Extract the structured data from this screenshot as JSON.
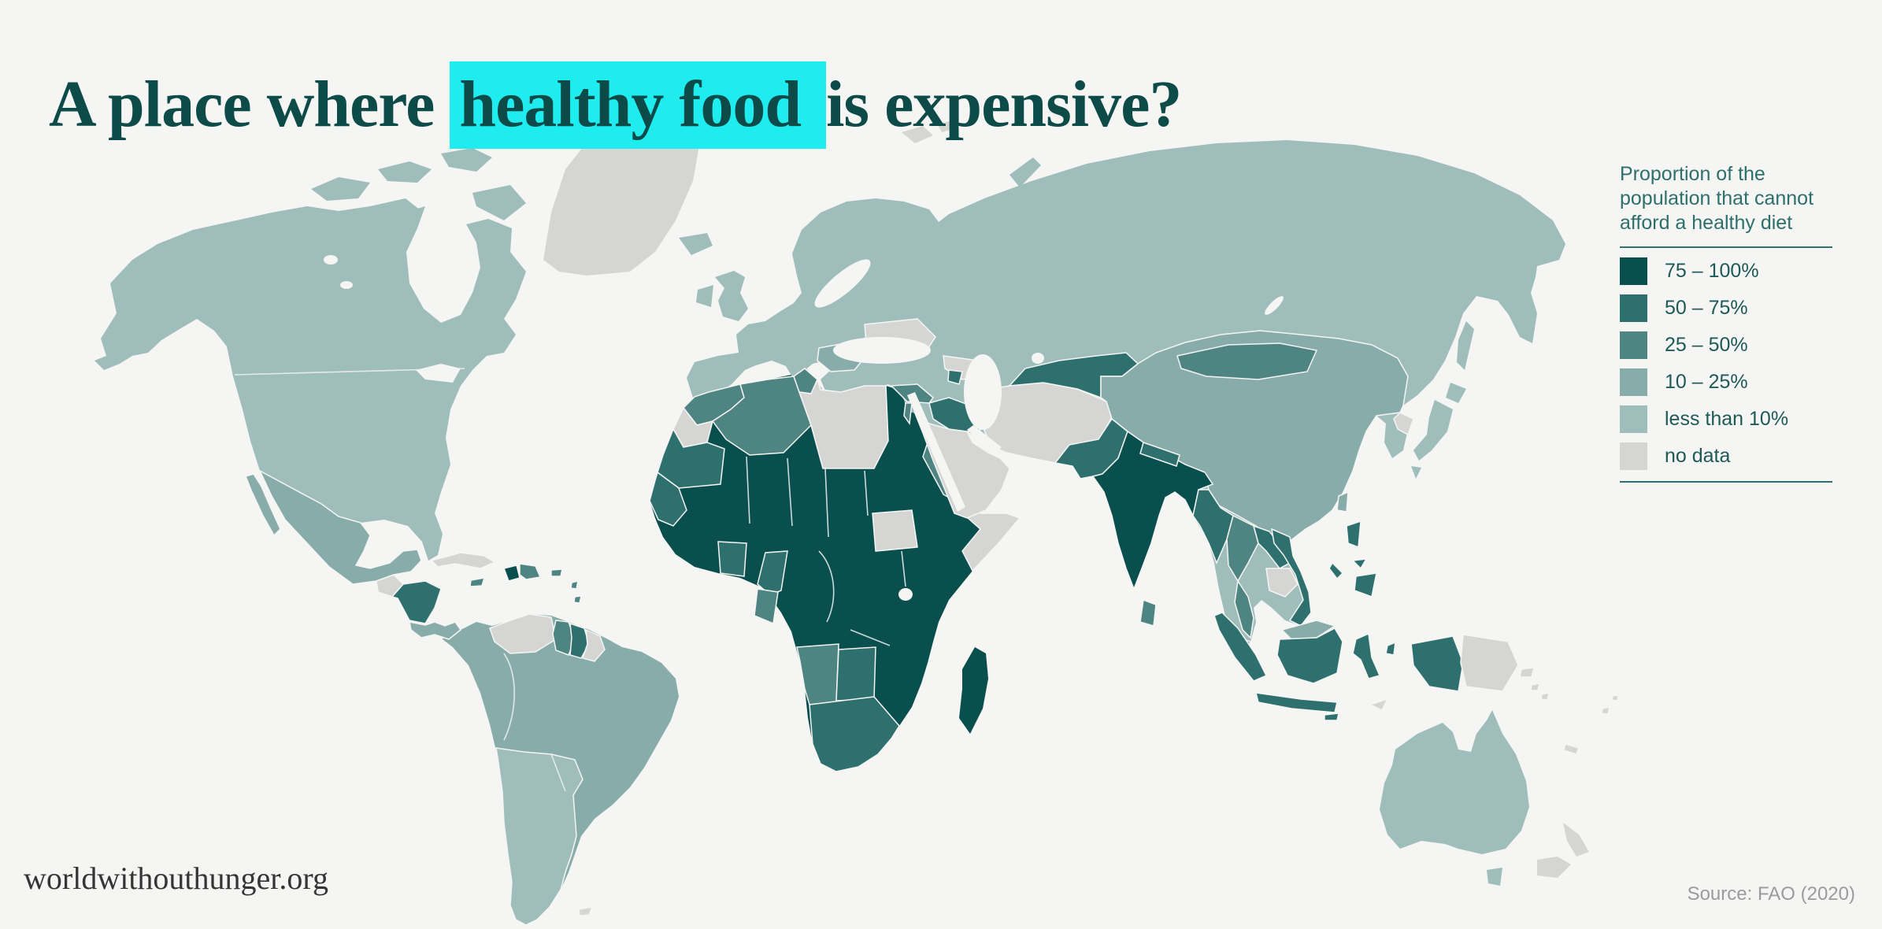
{
  "page": {
    "background": "#f5f5f4",
    "accent_highlight": "#1fecef",
    "title_color": "#0d4b49"
  },
  "header": {
    "title_pre": "A place where ",
    "title_highlight": "healthy food ",
    "title_post": "is expensive?"
  },
  "legend": {
    "title": "Proportion of the\npopulation that cannot\nafford a healthy diet",
    "items": [
      {
        "key": "75-100",
        "label": "75 – 100%",
        "color": "#084f4d"
      },
      {
        "key": "50-75",
        "label": "50 – 75%",
        "color": "#2e706d"
      },
      {
        "key": "25-50",
        "label": "25 – 50%",
        "color": "#4e8481"
      },
      {
        "key": "10-25",
        "label": "10 – 25%",
        "color": "#87acaa"
      },
      {
        "key": "less-10",
        "label": "less than 10%",
        "color": "#9fbdbb"
      },
      {
        "key": "no-data",
        "label": "no data",
        "color": "#d5d6d4"
      }
    ]
  },
  "footer": {
    "site": "worldwithouthunger.org",
    "source": "Source: FAO (2020)"
  },
  "chart_data": {
    "type": "heatmap",
    "subtype": "choropleth-world-map",
    "title": "A place where healthy food is expensive?",
    "legend_title": "Proportion of the population that cannot afford a healthy diet",
    "categories": [
      "75 – 100%",
      "50 – 75%",
      "25 – 50%",
      "10 – 25%",
      "less than 10%",
      "no data"
    ],
    "source": "Source: FAO (2020)"
  },
  "map": {
    "ocean": "#f5f5f4",
    "border_color": "#f5f5f4",
    "regions": [
      {
        "id": "north-america",
        "name": "Canada / United States / Alaska",
        "category": "less-10"
      },
      {
        "id": "greenland",
        "name": "Greenland",
        "category": "no-data"
      },
      {
        "id": "mexico",
        "name": "Mexico",
        "category": "10-25"
      },
      {
        "id": "guatemala",
        "name": "Guatemala",
        "category": "no-data"
      },
      {
        "id": "honduras-nicaragua",
        "name": "Honduras / Nicaragua",
        "category": "50-75"
      },
      {
        "id": "costa-rica-panama",
        "name": "Costa Rica / Panama",
        "category": "10-25"
      },
      {
        "id": "cuba",
        "name": "Cuba",
        "category": "no-data"
      },
      {
        "id": "jamaica",
        "name": "Jamaica",
        "category": "25-50"
      },
      {
        "id": "haiti",
        "name": "Haiti",
        "category": "75-100"
      },
      {
        "id": "dominican-republic",
        "name": "Dominican Republic",
        "category": "25-50"
      },
      {
        "id": "puerto-rico",
        "name": "Puerto Rico",
        "category": "25-50"
      },
      {
        "id": "lesser-antilles",
        "name": "Lesser Antilles",
        "category": "25-50"
      },
      {
        "id": "south-america",
        "name": "Brazil / Colombia / Peru / Bolivia / Ecuador / Uruguay",
        "category": "10-25"
      },
      {
        "id": "venezuela",
        "name": "Venezuela",
        "category": "no-data"
      },
      {
        "id": "guyana",
        "name": "Guyana",
        "category": "25-50"
      },
      {
        "id": "suriname",
        "name": "Suriname",
        "category": "50-75"
      },
      {
        "id": "french-guiana",
        "name": "French Guiana",
        "category": "no-data"
      },
      {
        "id": "southern-cone",
        "name": "Argentina / Chile / Paraguay",
        "category": "less-10"
      },
      {
        "id": "falkland-islands",
        "name": "Falkland Islands",
        "category": "no-data"
      },
      {
        "id": "eurasia",
        "name": "Europe / Russia / Kazakhstan / Turkey",
        "category": "less-10"
      },
      {
        "id": "united-kingdom",
        "name": "United Kingdom",
        "category": "less-10"
      },
      {
        "id": "ireland",
        "name": "Ireland",
        "category": "less-10"
      },
      {
        "id": "iceland",
        "name": "Iceland",
        "category": "less-10"
      },
      {
        "id": "svalbard",
        "name": "Svalbard",
        "category": "no-data"
      },
      {
        "id": "novaya-zemlya",
        "name": "Novaya Zemlya",
        "category": "less-10"
      },
      {
        "id": "balkans",
        "name": "Romania / Serbia / Bulgaria",
        "category": "10-25"
      },
      {
        "id": "ukraine",
        "name": "Ukraine",
        "category": "no-data"
      },
      {
        "id": "georgia-azerbaijan",
        "name": "Georgia / Azerbaijan",
        "category": "no-data"
      },
      {
        "id": "armenia",
        "name": "Armenia",
        "category": "50-75"
      },
      {
        "id": "syria",
        "name": "Syria",
        "category": "25-50"
      },
      {
        "id": "israel",
        "name": "Israel",
        "category": "25-50"
      },
      {
        "id": "iraq",
        "name": "Iraq",
        "category": "50-75"
      },
      {
        "id": "arabia",
        "name": "Saudi Arabia / Yemen / Oman / Jordan",
        "category": "no-data"
      },
      {
        "id": "iran-afghanistan-turkmenistan",
        "name": "Iran / Afghanistan / Turkmenistan",
        "category": "no-data"
      },
      {
        "id": "central-asia",
        "name": "Uzbekistan / Kyrgyzstan / Tajikistan",
        "category": "50-75"
      },
      {
        "id": "pakistan",
        "name": "Pakistan",
        "category": "50-75"
      },
      {
        "id": "india",
        "name": "India / Bangladesh",
        "category": "75-100"
      },
      {
        "id": "nepal",
        "name": "Nepal",
        "category": "50-75"
      },
      {
        "id": "china",
        "name": "China",
        "category": "10-25"
      },
      {
        "id": "mongolia",
        "name": "Mongolia",
        "category": "25-50"
      },
      {
        "id": "north-korea",
        "name": "North Korea",
        "category": "no-data"
      },
      {
        "id": "japan",
        "name": "Japan",
        "category": "less-10"
      },
      {
        "id": "sakhalin",
        "name": "Sakhalin",
        "category": "less-10"
      },
      {
        "id": "taiwan",
        "name": "Taiwan",
        "category": "10-25"
      },
      {
        "id": "myanmar",
        "name": "Myanmar",
        "category": "50-75"
      },
      {
        "id": "thailand",
        "name": "Thailand",
        "category": "25-50"
      },
      {
        "id": "laos",
        "name": "Laos",
        "category": "50-75"
      },
      {
        "id": "cambodia",
        "name": "Cambodia",
        "category": "no-data"
      },
      {
        "id": "vietnam",
        "name": "Vietnam",
        "category": "50-75"
      },
      {
        "id": "malaysia",
        "name": "Malaysia",
        "category": "10-25"
      },
      {
        "id": "sri-lanka",
        "name": "Sri Lanka",
        "category": "25-50"
      },
      {
        "id": "philippines",
        "name": "Philippines",
        "category": "50-75"
      },
      {
        "id": "indonesia",
        "name": "Indonesia",
        "category": "50-75"
      },
      {
        "id": "timor",
        "name": "Timor-Leste",
        "category": "no-data"
      },
      {
        "id": "papua-new-guinea",
        "name": "Papua New Guinea",
        "category": "no-data"
      },
      {
        "id": "africa",
        "name": "Sub-Saharan Africa (most countries)",
        "category": "75-100"
      },
      {
        "id": "morocco",
        "name": "Morocco",
        "category": "25-50"
      },
      {
        "id": "western-sahara",
        "name": "Western Sahara",
        "category": "no-data"
      },
      {
        "id": "algeria",
        "name": "Algeria",
        "category": "25-50"
      },
      {
        "id": "tunisia",
        "name": "Tunisia",
        "category": "25-50"
      },
      {
        "id": "libya",
        "name": "Libya",
        "category": "no-data"
      },
      {
        "id": "mauritania",
        "name": "Mauritania",
        "category": "50-75"
      },
      {
        "id": "senegal-guinea",
        "name": "Senegal / Gambia",
        "category": "50-75"
      },
      {
        "id": "ghana-togo-benin",
        "name": "Ghana / Togo / Benin",
        "category": "50-75"
      },
      {
        "id": "cameroon",
        "name": "Cameroon",
        "category": "50-75"
      },
      {
        "id": "gabon",
        "name": "Gabon",
        "category": "25-50"
      },
      {
        "id": "south-sudan",
        "name": "South Sudan",
        "category": "no-data"
      },
      {
        "id": "eritrea",
        "name": "Eritrea",
        "category": "25-50"
      },
      {
        "id": "somalia",
        "name": "Somalia",
        "category": "no-data"
      },
      {
        "id": "namibia",
        "name": "Namibia",
        "category": "25-50"
      },
      {
        "id": "botswana",
        "name": "Botswana",
        "category": "50-75"
      },
      {
        "id": "south-africa",
        "name": "South Africa",
        "category": "50-75"
      },
      {
        "id": "madagascar",
        "name": "Madagascar",
        "category": "75-100"
      },
      {
        "id": "australia",
        "name": "Australia",
        "category": "less-10"
      },
      {
        "id": "tasmania",
        "name": "Tasmania",
        "category": "less-10"
      },
      {
        "id": "new-zealand",
        "name": "New Zealand",
        "category": "no-data"
      },
      {
        "id": "new-caledonia",
        "name": "New Caledonia",
        "category": "no-data"
      },
      {
        "id": "solomon-islands",
        "name": "Solomon Islands",
        "category": "no-data"
      },
      {
        "id": "fiji",
        "name": "Fiji",
        "category": "no-data"
      }
    ]
  }
}
